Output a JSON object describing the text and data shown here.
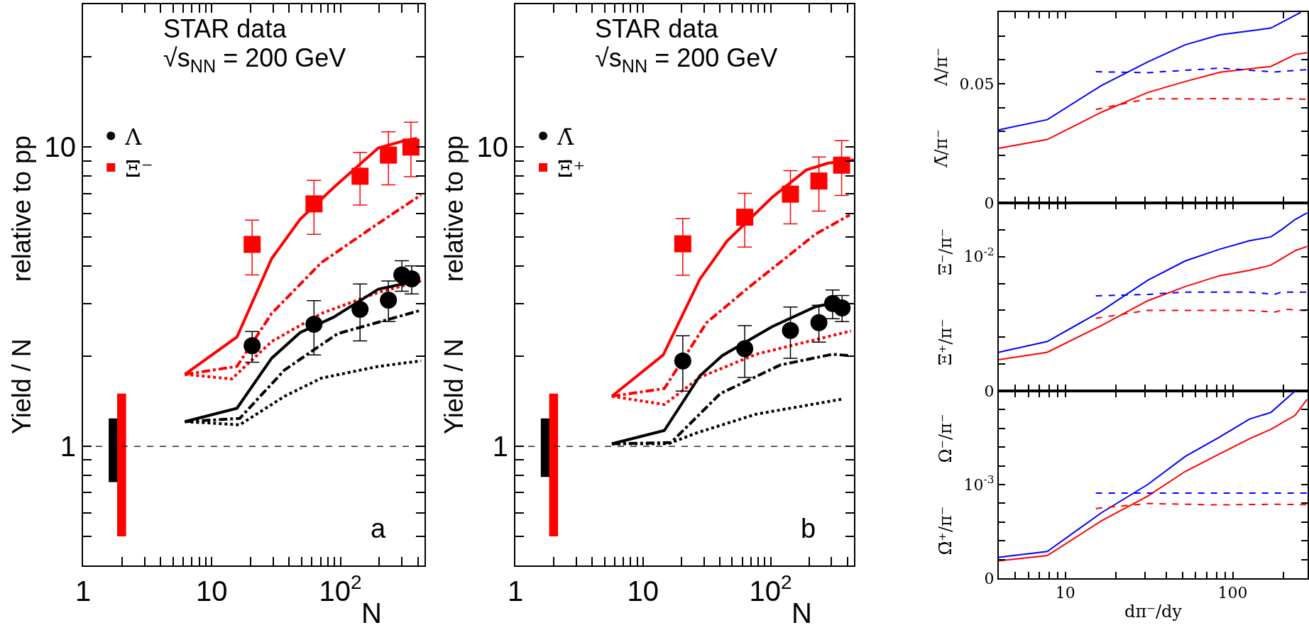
{
  "chart_data": [
    {
      "type": "line",
      "xlabel": "N",
      "ylabel": "Yield / N        relative to pp",
      "log": "xy",
      "xlim": [
        1,
        450
      ],
      "ylim": [
        0.4,
        30
      ],
      "xticks": [
        1,
        {
          "value": 2,
          "label": null
        },
        {
          "value": 3,
          "label": null
        },
        {
          "value": 4,
          "label": null
        },
        {
          "value": 5,
          "label": null
        },
        {
          "value": 6,
          "label": null
        },
        {
          "value": 7,
          "label": null
        },
        {
          "value": 8,
          "label": null
        },
        {
          "value": 9,
          "label": null
        },
        10,
        {
          "value": 20,
          "label": null
        },
        {
          "value": 30,
          "label": null
        },
        {
          "value": 40,
          "label": null
        },
        {
          "value": 50,
          "label": null
        },
        {
          "value": 60,
          "label": null
        },
        {
          "value": 70,
          "label": null
        },
        {
          "value": 80,
          "label": null
        },
        {
          "value": 90,
          "label": null
        },
        {
          "value": 100,
          "label": "10$^{2}$"
        },
        {
          "value": 200,
          "label": null
        },
        {
          "value": 300,
          "label": null
        },
        {
          "value": 400,
          "label": null
        }
      ],
      "yticks": [
        {
          "value": 0.5,
          "label": null
        },
        {
          "value": 0.6,
          "label": null
        },
        {
          "value": 0.7,
          "label": null
        },
        {
          "value": 0.8,
          "label": null
        },
        {
          "value": 0.9,
          "label": null
        },
        1,
        {
          "value": 2,
          "label": null
        },
        {
          "value": 3,
          "label": null
        },
        {
          "value": 4,
          "label": null
        },
        {
          "value": 5,
          "label": null
        },
        {
          "value": 6,
          "label": null
        },
        {
          "value": 7,
          "label": null
        },
        {
          "value": 8,
          "label": null
        },
        {
          "value": 9,
          "label": null
        },
        10,
        {
          "value": 20,
          "label": null
        },
        {
          "value": 30,
          "label": null
        }
      ],
      "legend": "top left",
      "annotations": [
        "STAR data",
        "√s$_{NN}$ = 200 GeV",
        "a"
      ],
      "ref_lines": [
        {
          "axis": "y",
          "value": 1,
          "line_style": "dashed",
          "color": "#000000"
        }
      ],
      "series": [
        {
          "color": "#ff0000",
          "line_style": "solid",
          "x": [
            6.18,
            15.7,
            29.2,
            48.6,
            88.3,
            197,
            305,
            393
          ],
          "values": [
            1.74,
            2.32,
            4.24,
            5.74,
            7.32,
            9.93,
            10.47,
            10.7
          ]
        },
        {
          "color": "#ff0000",
          "line_style": "dashdot",
          "x": [
            6.18,
            15.7,
            29.2,
            71,
            197,
            423
          ],
          "values": [
            1.74,
            1.85,
            2.78,
            4.11,
            5.56,
            6.92
          ]
        },
        {
          "color": "#ff0000",
          "line_style": "dotted",
          "x": [
            6.18,
            14.3,
            29.2,
            71,
            197,
            423
          ],
          "values": [
            1.74,
            1.68,
            2.24,
            2.78,
            3.27,
            3.57
          ]
        },
        {
          "color": "#000000",
          "line_style": "solid",
          "x": [
            6.18,
            15.7,
            29.2,
            48.6,
            88.3,
            197,
            393
          ],
          "values": [
            1.21,
            1.34,
            1.97,
            2.4,
            2.7,
            3.35,
            3.57
          ]
        },
        {
          "color": "#000000",
          "line_style": "dashdot",
          "x": [
            6.18,
            16.5,
            36.8,
            95,
            423
          ],
          "values": [
            1.21,
            1.24,
            1.8,
            2.38,
            2.85
          ]
        },
        {
          "color": "#000000",
          "line_style": "dotted",
          "x": [
            6.18,
            16.5,
            36.8,
            71,
            197,
            423
          ],
          "values": [
            1.21,
            1.18,
            1.47,
            1.69,
            1.85,
            1.93
          ]
        },
        {
          "type": "bar",
          "color": "#000000",
          "x": [
            1.72
          ],
          "base": [
            0.76
          ],
          "values": [
            0.48
          ]
        },
        {
          "type": "bar",
          "color": "#ff0000",
          "x": [
            2.0
          ],
          "base": [
            0.5
          ],
          "values": [
            1.0
          ]
        },
        {
          "type": "scatter",
          "name": "Λ",
          "color": "#000000",
          "marker": "circle",
          "x": [
            20.6,
            62.3,
            142,
            236,
            300,
            358
          ],
          "values": [
            2.17,
            2.56,
            2.87,
            3.08,
            3.74,
            3.63
          ],
          "errors": [
            [
              1.91,
              2.42
            ],
            [
              2.02,
              3.07
            ],
            [
              2.25,
              3.49
            ],
            [
              2.61,
              3.57
            ],
            [
              3.3,
              4.17
            ],
            [
              3.23,
              4.01
            ]
          ]
        },
        {
          "type": "scatter",
          "name": "Ξ⁻",
          "color": "#ff0000",
          "marker": "square",
          "x": [
            20.6,
            62.3,
            142,
            236,
            353
          ],
          "values": [
            4.73,
            6.46,
            7.99,
            9.4,
            10.0
          ],
          "errors": [
            [
              3.74,
              5.7
            ],
            [
              5.11,
              7.74
            ],
            [
              6.4,
              9.6
            ],
            [
              7.48,
              11.25
            ],
            [
              7.96,
              12.1
            ]
          ]
        }
      ]
    },
    {
      "type": "line",
      "xlabel": "N",
      "ylabel": "Yield / N        relative to pp",
      "log": "xy",
      "xlim": [
        1,
        450
      ],
      "ylim": [
        0.4,
        30
      ],
      "xticks": [
        1,
        {
          "value": 2,
          "label": null
        },
        {
          "value": 3,
          "label": null
        },
        {
          "value": 4,
          "label": null
        },
        {
          "value": 5,
          "label": null
        },
        {
          "value": 6,
          "label": null
        },
        {
          "value": 7,
          "label": null
        },
        {
          "value": 8,
          "label": null
        },
        {
          "value": 9,
          "label": null
        },
        10,
        {
          "value": 20,
          "label": null
        },
        {
          "value": 30,
          "label": null
        },
        {
          "value": 40,
          "label": null
        },
        {
          "value": 50,
          "label": null
        },
        {
          "value": 60,
          "label": null
        },
        {
          "value": 70,
          "label": null
        },
        {
          "value": 80,
          "label": null
        },
        {
          "value": 90,
          "label": null
        },
        {
          "value": 100,
          "label": "10$^{2}$"
        },
        {
          "value": 200,
          "label": null
        },
        {
          "value": 300,
          "label": null
        },
        {
          "value": 400,
          "label": null
        }
      ],
      "yticks": [
        {
          "value": 0.5,
          "label": null
        },
        {
          "value": 0.6,
          "label": null
        },
        {
          "value": 0.7,
          "label": null
        },
        {
          "value": 0.8,
          "label": null
        },
        {
          "value": 0.9,
          "label": null
        },
        1,
        {
          "value": 2,
          "label": null
        },
        {
          "value": 3,
          "label": null
        },
        {
          "value": 4,
          "label": null
        },
        {
          "value": 5,
          "label": null
        },
        {
          "value": 6,
          "label": null
        },
        {
          "value": 7,
          "label": null
        },
        {
          "value": 8,
          "label": null
        },
        {
          "value": 9,
          "label": null
        },
        10,
        {
          "value": 20,
          "label": null
        },
        {
          "value": 30,
          "label": null
        }
      ],
      "legend": "top left",
      "annotations": [
        "STAR data",
        "√s$_{NN}$ = 200 GeV",
        "b"
      ],
      "ref_lines": [
        {
          "axis": "y",
          "value": 1,
          "line_style": "dashed",
          "color": "#000000"
        }
      ],
      "series": [
        {
          "color": "#ff0000",
          "line_style": "solid",
          "x": [
            5.7,
            14.4,
            27.9,
            45.5,
            102.6,
            190,
            281,
            449
          ],
          "values": [
            1.47,
            2.02,
            3.62,
            4.85,
            6.79,
            8.38,
            8.83,
            9.07
          ]
        },
        {
          "color": "#ff0000",
          "line_style": "dashdot",
          "x": [
            5.7,
            14.7,
            31.5,
            67.5,
            225,
            417
          ],
          "values": [
            1.47,
            1.56,
            2.59,
            3.4,
            5.12,
            5.93
          ]
        },
        {
          "color": "#ff0000",
          "line_style": "dotted",
          "x": [
            5.7,
            14.7,
            27.9,
            76.4,
            427
          ],
          "values": [
            1.47,
            1.38,
            1.7,
            2.03,
            2.43
          ]
        },
        {
          "color": "#000000",
          "line_style": "solid",
          "x": [
            5.7,
            14.7,
            27.9,
            41.8,
            102.6,
            225,
            369
          ],
          "values": [
            1.02,
            1.13,
            1.72,
            2.01,
            2.51,
            2.93,
            3.06
          ]
        },
        {
          "color": "#000000",
          "line_style": "dashdot",
          "x": [
            5.7,
            16.6,
            40.3,
            119,
            303,
            427
          ],
          "values": [
            1.02,
            1.03,
            1.5,
            1.87,
            2.03,
            2.01
          ]
        },
        {
          "color": "#000000",
          "line_style": "dotted",
          "x": [
            5.7,
            15.8,
            26.5,
            76.4,
            369
          ],
          "values": [
            1.02,
            1.02,
            1.11,
            1.28,
            1.44
          ]
        },
        {
          "type": "bar",
          "color": "#000000",
          "x": [
            1.72
          ],
          "base": [
            0.79
          ],
          "values": [
            0.45
          ]
        },
        {
          "type": "bar",
          "color": "#ff0000",
          "x": [
            2.0
          ],
          "base": [
            0.5
          ],
          "values": [
            1.0
          ]
        },
        {
          "type": "scatter",
          "name": "Λ̄",
          "color": "#000000",
          "marker": "circle",
          "x": [
            20.5,
            62.7,
            143,
            239,
            306,
            363
          ],
          "values": [
            1.93,
            2.12,
            2.44,
            2.59,
            3.0,
            2.9
          ],
          "errors": [
            [
              1.53,
              2.34
            ],
            [
              1.7,
              2.53
            ],
            [
              1.97,
              2.92
            ],
            [
              2.23,
              2.96
            ],
            [
              2.67,
              3.33
            ],
            [
              2.61,
              3.19
            ]
          ]
        },
        {
          "type": "scatter",
          "name": "Ξ̄⁺",
          "color": "#ff0000",
          "marker": "square",
          "x": [
            20.5,
            62.7,
            143,
            239,
            360
          ],
          "values": [
            4.75,
            5.83,
            6.96,
            7.7,
            8.7
          ],
          "errors": [
            [
              3.73,
              5.77
            ],
            [
              4.63,
              7.0
            ],
            [
              5.54,
              8.34
            ],
            [
              6.11,
              9.27
            ],
            [
              6.89,
              10.5
            ]
          ]
        }
      ]
    },
    {
      "type": "line",
      "ylabel": "Λ̄/π⁻        Λ/π⁻",
      "log": "x",
      "xlim": [
        4,
        280
      ],
      "ylim": [
        0,
        0.08
      ],
      "tick_labels": "y",
      "xticks": [
        {
          "value": 5,
          "label": null
        },
        {
          "value": 6,
          "label": null
        },
        {
          "value": 7,
          "label": null
        },
        {
          "value": 8,
          "label": null
        },
        {
          "value": 9,
          "label": null
        },
        10,
        {
          "value": 20,
          "label": null
        },
        {
          "value": 30,
          "label": null
        },
        {
          "value": 40,
          "label": null
        },
        {
          "value": 50,
          "label": null
        },
        {
          "value": 60,
          "label": null
        },
        {
          "value": 70,
          "label": null
        },
        {
          "value": 80,
          "label": null
        },
        {
          "value": 90,
          "label": null
        },
        100,
        {
          "value": 200,
          "label": null
        }
      ],
      "yticks": [
        0,
        {
          "value": 0.01,
          "label": null
        },
        {
          "value": 0.02,
          "label": null
        },
        {
          "value": 0.03,
          "label": null
        },
        {
          "value": 0.04,
          "label": null
        },
        0.05,
        {
          "value": 0.06,
          "label": null
        },
        {
          "value": 0.07,
          "label": null
        }
      ],
      "series": [
        {
          "color": "#0000ff",
          "line_style": "solid",
          "x": [
            4,
            7.8,
            16.4,
            31,
            52,
            84,
            169,
            255
          ],
          "values": [
            0.0306,
            0.0349,
            0.0492,
            0.0591,
            0.0663,
            0.0705,
            0.0733,
            0.0799
          ]
        },
        {
          "color": "#ff0000",
          "line_style": "solid",
          "x": [
            4,
            7.8,
            16.4,
            31,
            52,
            84,
            169,
            236,
            278
          ],
          "values": [
            0.0229,
            0.0266,
            0.038,
            0.0463,
            0.0509,
            0.0548,
            0.0572,
            0.0622,
            0.063
          ]
        },
        {
          "color": "#0000ff",
          "line_style": "dashed",
          "x": [
            15.2,
            31,
            84,
            177,
            280
          ],
          "values": [
            0.055,
            0.0546,
            0.0565,
            0.0549,
            0.0559
          ]
        },
        {
          "color": "#ff0000",
          "line_style": "dashed",
          "x": [
            15.2,
            31,
            84,
            177,
            208,
            280
          ],
          "values": [
            0.0392,
            0.0436,
            0.0437,
            0.0434,
            0.0438,
            0.0434
          ]
        }
      ]
    },
    {
      "type": "line",
      "ylabel": "Ξ̄⁺/π⁻        Ξ⁻/π⁻",
      "log": "x",
      "xlim": [
        4,
        280
      ],
      "ylim": [
        0,
        0.014
      ],
      "tick_labels": "y",
      "xticks": [
        {
          "value": 5,
          "label": null
        },
        {
          "value": 6,
          "label": null
        },
        {
          "value": 7,
          "label": null
        },
        {
          "value": 8,
          "label": null
        },
        {
          "value": 9,
          "label": null
        },
        10,
        {
          "value": 20,
          "label": null
        },
        {
          "value": 30,
          "label": null
        },
        {
          "value": 40,
          "label": null
        },
        {
          "value": 50,
          "label": null
        },
        {
          "value": 60,
          "label": null
        },
        {
          "value": 70,
          "label": null
        },
        {
          "value": 80,
          "label": null
        },
        {
          "value": 90,
          "label": null
        },
        100,
        {
          "value": 200,
          "label": null
        }
      ],
      "yticks": [
        0,
        {
          "value": 0.002,
          "label": null
        },
        {
          "value": 0.004,
          "label": null
        },
        {
          "value": 0.006,
          "label": null
        },
        {
          "value": 0.008,
          "label": null
        },
        {
          "value": 0.01,
          "label": "10$^{-2}$"
        },
        {
          "value": 0.012,
          "label": null
        }
      ],
      "series": [
        {
          "color": "#0000ff",
          "line_style": "solid",
          "x": [
            4,
            7.8,
            16.4,
            31,
            52,
            84,
            126,
            169,
            196,
            236,
            278
          ],
          "values": [
            0.00288,
            0.00368,
            0.00595,
            0.00823,
            0.00968,
            0.01056,
            0.01119,
            0.01147,
            0.01201,
            0.01277,
            0.01325
          ]
        },
        {
          "color": "#ff0000",
          "line_style": "solid",
          "x": [
            4,
            7.8,
            16.4,
            31,
            52,
            84,
            126,
            169,
            196,
            236,
            278
          ],
          "values": [
            0.00232,
            0.00288,
            0.00487,
            0.00671,
            0.00777,
            0.00859,
            0.00898,
            0.00937,
            0.00985,
            0.01045,
            0.01076
          ]
        },
        {
          "color": "#0000ff",
          "line_style": "dashed",
          "x": [
            15.2,
            31,
            52,
            126,
            177,
            196,
            280
          ],
          "values": [
            0.00708,
            0.00719,
            0.00736,
            0.00736,
            0.00719,
            0.00736,
            0.00736
          ]
        },
        {
          "color": "#ff0000",
          "line_style": "dashed",
          "x": [
            15.2,
            31,
            126,
            177,
            208,
            280
          ],
          "values": [
            0.00541,
            0.006,
            0.006,
            0.00587,
            0.00608,
            0.00597
          ]
        }
      ]
    },
    {
      "type": "line",
      "xlabel": "dπ⁻/dy",
      "ylabel": "Ω̄⁺/π⁻        Ω⁻/π⁻",
      "log": "x",
      "xlim": [
        4,
        280
      ],
      "ylim": [
        0,
        0.002
      ],
      "xticks": [
        {
          "value": 5,
          "label": null
        },
        {
          "value": 6,
          "label": null
        },
        {
          "value": 7,
          "label": null
        },
        {
          "value": 8,
          "label": null
        },
        {
          "value": 9,
          "label": null
        },
        10,
        {
          "value": 20,
          "label": null
        },
        {
          "value": 30,
          "label": null
        },
        {
          "value": 40,
          "label": null
        },
        {
          "value": 50,
          "label": null
        },
        {
          "value": 60,
          "label": null
        },
        {
          "value": 70,
          "label": null
        },
        {
          "value": 80,
          "label": null
        },
        {
          "value": 90,
          "label": null
        },
        100,
        {
          "value": 200,
          "label": null
        }
      ],
      "yticks": [
        0,
        {
          "value": 0.0002,
          "label": null
        },
        {
          "value": 0.0004,
          "label": null
        },
        {
          "value": 0.0006,
          "label": null
        },
        {
          "value": 0.0008,
          "label": null
        },
        {
          "value": 0.001,
          "label": "10$^{-3}$"
        },
        {
          "value": 0.0012,
          "label": null
        },
        {
          "value": 0.0014,
          "label": null
        },
        {
          "value": 0.0016,
          "label": null
        },
        {
          "value": 0.0018,
          "label": null
        }
      ],
      "series": [
        {
          "color": "#0000ff",
          "line_style": "solid",
          "x": [
            4,
            7.8,
            16.4,
            31,
            52,
            84,
            126,
            169,
            236
          ],
          "values": [
            0.000224,
            0.000286,
            0.000699,
            0.001,
            0.0013,
            0.00151,
            0.0017,
            0.00177,
            0.002
          ]
        },
        {
          "color": "#ff0000",
          "line_style": "solid",
          "x": [
            4,
            7.8,
            16.4,
            31,
            52,
            84,
            126,
            169,
            236,
            278
          ],
          "values": [
            0.000186,
            0.000242,
            0.000612,
            0.000876,
            0.00114,
            0.00133,
            0.00149,
            0.00159,
            0.00174,
            0.00191
          ]
        },
        {
          "color": "#0000ff",
          "line_style": "dashed",
          "x": [
            15.2,
            280
          ],
          "values": [
            0.00091,
            0.00091
          ]
        },
        {
          "color": "#ff0000",
          "line_style": "dashed",
          "x": [
            15.2,
            31,
            84,
            169,
            280
          ],
          "values": [
            0.000745,
            0.000798,
            0.000783,
            0.00079,
            0.000786
          ]
        }
      ]
    }
  ]
}
